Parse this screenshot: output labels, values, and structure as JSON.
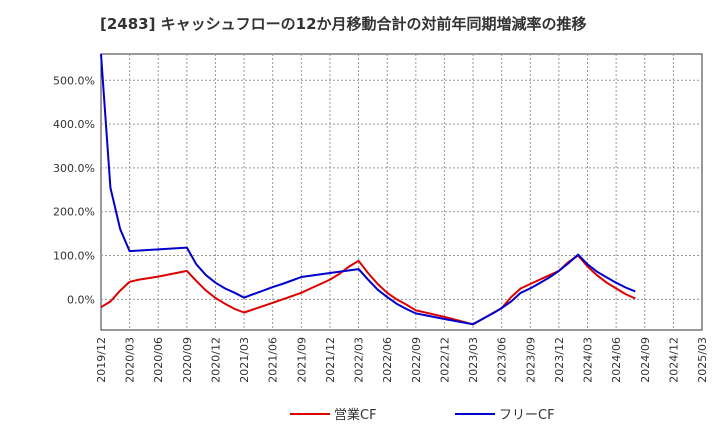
{
  "chart_data": {
    "type": "line",
    "title": "[2483]  キャッシュフローの12か月移動合計の対前年同期増減率の推移",
    "xlabel": "",
    "ylabel": "",
    "ylim": [
      -70,
      560
    ],
    "y_ticks": [
      {
        "value": 500,
        "label": "500.0%"
      },
      {
        "value": 400,
        "label": "400.0%"
      },
      {
        "value": 300,
        "label": "300.0%"
      },
      {
        "value": 200,
        "label": "200.0%"
      },
      {
        "value": 100,
        "label": "100.0%"
      },
      {
        "value": 0,
        "label": "0.0%"
      }
    ],
    "x_tick_labels": [
      "2019/12",
      "2020/03",
      "2020/06",
      "2020/09",
      "2020/12",
      "2021/03",
      "2021/06",
      "2021/09",
      "2021/12",
      "2022/03",
      "2022/06",
      "2022/09",
      "2022/12",
      "2023/03",
      "2023/06",
      "2023/09",
      "2023/12",
      "2024/03",
      "2024/06",
      "2024/09",
      "2024/12",
      "2025/03"
    ],
    "grid": true,
    "legend_position": "bottom-center",
    "series": [
      {
        "name": "営業CF",
        "color": "#dd0000",
        "points": [
          [
            0,
            -18
          ],
          [
            0.33,
            -5
          ],
          [
            0.67,
            20
          ],
          [
            1,
            40
          ],
          [
            1.33,
            45
          ],
          [
            2,
            52
          ],
          [
            3,
            65
          ],
          [
            3.33,
            42
          ],
          [
            3.67,
            20
          ],
          [
            4,
            3
          ],
          [
            4.33,
            -10
          ],
          [
            4.67,
            -22
          ],
          [
            5,
            -30
          ],
          [
            6,
            -8
          ],
          [
            7,
            15
          ],
          [
            7.33,
            25
          ],
          [
            7.67,
            35
          ],
          [
            8,
            45
          ],
          [
            8.33,
            58
          ],
          [
            8.67,
            75
          ],
          [
            9,
            88
          ],
          [
            9.33,
            60
          ],
          [
            9.67,
            35
          ],
          [
            10,
            15
          ],
          [
            10.33,
            0
          ],
          [
            10.67,
            -12
          ],
          [
            11,
            -25
          ],
          [
            12,
            -40
          ],
          [
            13,
            -57
          ],
          [
            14,
            -20
          ],
          [
            14.33,
            5
          ],
          [
            14.67,
            25
          ],
          [
            15,
            35
          ],
          [
            15.33,
            45
          ],
          [
            15.67,
            55
          ],
          [
            16,
            65
          ],
          [
            16.33,
            85
          ],
          [
            16.67,
            100
          ],
          [
            17,
            75
          ],
          [
            17.33,
            55
          ],
          [
            17.67,
            38
          ],
          [
            18,
            25
          ],
          [
            18.33,
            12
          ],
          [
            18.67,
            2
          ]
        ]
      },
      {
        "name": "フリーCF",
        "color": "#0000cc",
        "points": [
          [
            0,
            560
          ],
          [
            0.33,
            255
          ],
          [
            0.67,
            160
          ],
          [
            1,
            110
          ],
          [
            2,
            114
          ],
          [
            3,
            118
          ],
          [
            3.33,
            80
          ],
          [
            3.67,
            55
          ],
          [
            4,
            38
          ],
          [
            4.33,
            25
          ],
          [
            4.67,
            15
          ],
          [
            5,
            4
          ],
          [
            5.33,
            12
          ],
          [
            5.67,
            20
          ],
          [
            6,
            28
          ],
          [
            6.33,
            35
          ],
          [
            6.67,
            43
          ],
          [
            7,
            51
          ],
          [
            8,
            60
          ],
          [
            9,
            69
          ],
          [
            9.33,
            45
          ],
          [
            9.67,
            22
          ],
          [
            10,
            5
          ],
          [
            10.33,
            -10
          ],
          [
            10.67,
            -22
          ],
          [
            11,
            -32
          ],
          [
            12,
            -45
          ],
          [
            13,
            -57
          ],
          [
            13.33,
            -45
          ],
          [
            13.67,
            -33
          ],
          [
            14,
            -20
          ],
          [
            14.33,
            -5
          ],
          [
            14.67,
            15
          ],
          [
            15,
            25
          ],
          [
            15.33,
            37
          ],
          [
            15.67,
            50
          ],
          [
            16,
            65
          ],
          [
            16.33,
            82
          ],
          [
            16.67,
            102
          ],
          [
            17,
            80
          ],
          [
            17.33,
            63
          ],
          [
            17.67,
            50
          ],
          [
            18,
            38
          ],
          [
            18.33,
            27
          ],
          [
            18.67,
            18
          ]
        ]
      }
    ]
  }
}
